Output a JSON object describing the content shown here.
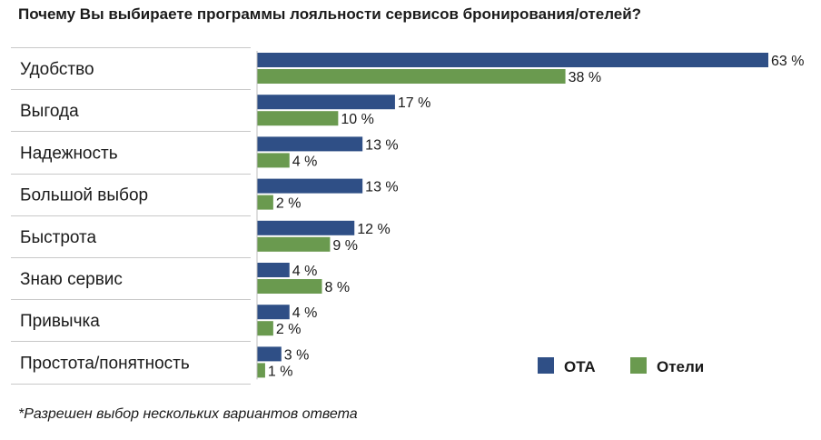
{
  "chart_data": {
    "type": "bar",
    "orientation": "horizontal",
    "title": "Почему Вы выбираете программы лояльности сервисов бронирования/отелей?",
    "footnote": "*Разрешен выбор нескольких вариантов ответа",
    "categories": [
      "Удобство",
      "Выгода",
      "Надежность",
      "Большой выбор",
      "Быстрота",
      "Знаю сервис",
      "Привычка",
      "Простота/понятность"
    ],
    "series": [
      {
        "name": "OTA",
        "color": "#2f4f86",
        "values": [
          63,
          17,
          13,
          13,
          12,
          4,
          4,
          3
        ],
        "labels": [
          "63 %",
          "17 %",
          "13 %",
          "13 %",
          "12 %",
          "4 %",
          "4 %",
          "3 %"
        ]
      },
      {
        "name": "Отели",
        "color": "#6a9a4f",
        "values": [
          38,
          10,
          4,
          2,
          9,
          8,
          2,
          1
        ],
        "labels": [
          "38 %",
          "10 %",
          "4 %",
          "2 %",
          "9 %",
          "8 %",
          "2 %",
          "1 %"
        ]
      }
    ],
    "xlim": [
      0,
      63
    ],
    "grid": false,
    "legend_position": "bottom-right"
  }
}
